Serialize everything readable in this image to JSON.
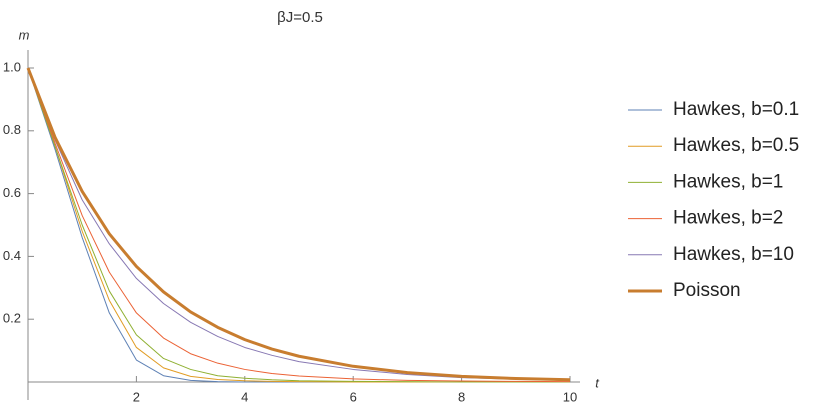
{
  "chart_data": {
    "type": "line",
    "title": "βJ=0.5",
    "x_label": "t",
    "y_label": "m",
    "x": [
      0,
      0.5,
      1,
      1.5,
      2,
      2.5,
      3,
      3.5,
      4,
      4.5,
      5,
      6,
      7,
      8,
      9,
      10
    ],
    "series": [
      {
        "name": "Hawkes, b=0.1",
        "color": "#5e81b5",
        "values": [
          1,
          0.74,
          0.46,
          0.22,
          0.07,
          0.02,
          0.005,
          0.001,
          0,
          0,
          0,
          0,
          0,
          0,
          0,
          0
        ]
      },
      {
        "name": "Hawkes, b=0.5",
        "color": "#e19c24",
        "values": [
          1,
          0.75,
          0.48,
          0.26,
          0.11,
          0.045,
          0.018,
          0.008,
          0.004,
          0.002,
          0.001,
          0,
          0,
          0,
          0,
          0
        ]
      },
      {
        "name": "Hawkes, b=1",
        "color": "#8fb032",
        "values": [
          1,
          0.75,
          0.5,
          0.29,
          0.15,
          0.075,
          0.04,
          0.02,
          0.012,
          0.007,
          0.004,
          0.002,
          0.001,
          0,
          0,
          0
        ]
      },
      {
        "name": "Hawkes, b=2",
        "color": "#eb6235",
        "values": [
          1,
          0.76,
          0.53,
          0.35,
          0.22,
          0.14,
          0.09,
          0.06,
          0.04,
          0.027,
          0.019,
          0.01,
          0.005,
          0.003,
          0.002,
          0.001
        ]
      },
      {
        "name": "Hawkes, b=10",
        "color": "#8778b3",
        "values": [
          1,
          0.77,
          0.58,
          0.44,
          0.33,
          0.25,
          0.19,
          0.145,
          0.11,
          0.085,
          0.065,
          0.04,
          0.024,
          0.014,
          0.009,
          0.005
        ]
      },
      {
        "name": "Poisson",
        "color": "#c87d2f",
        "values": [
          1,
          0.779,
          0.607,
          0.472,
          0.368,
          0.287,
          0.223,
          0.174,
          0.135,
          0.105,
          0.082,
          0.05,
          0.03,
          0.018,
          0.011,
          0.007
        ]
      }
    ],
    "xlim": [
      0,
      10
    ],
    "ylim": [
      0,
      1.05
    ],
    "xticks": [
      2,
      4,
      6,
      8,
      10
    ],
    "yticks": [
      0.2,
      0.4,
      0.6,
      0.8,
      {
        "value": 1,
        "label": "1.0"
      }
    ],
    "grid": false,
    "legend": "right"
  }
}
